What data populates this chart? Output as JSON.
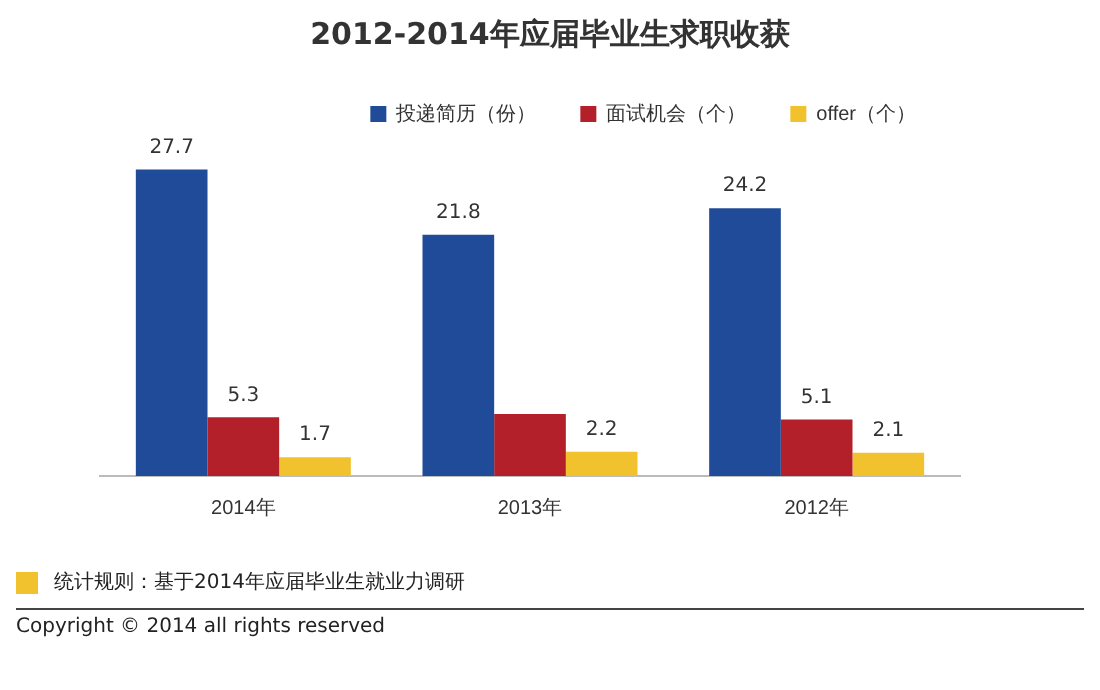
{
  "chart_data": {
    "type": "bar",
    "title": "2012-2014年应届毕业生求职收获",
    "categories": [
      "2014年",
      "2013年",
      "2012年"
    ],
    "series": [
      {
        "name": "投递简历（份）",
        "color": "#1f4b99",
        "values": [
          27.7,
          21.8,
          24.2
        ],
        "value_labels": [
          "27.7",
          "21.8",
          "24.2"
        ]
      },
      {
        "name": "面试机会（个）",
        "color": "#b3202a",
        "values": [
          5.3,
          5.6,
          5.1
        ],
        "value_labels": [
          "5.3",
          null,
          "5.1"
        ]
      },
      {
        "name": "offer（个）",
        "color": "#f2c12e",
        "values": [
          1.7,
          2.2,
          2.1
        ],
        "value_labels": [
          "1.7",
          "2.2",
          "2.1"
        ]
      }
    ],
    "legend": "top right",
    "grid": false,
    "annotations": [
      "统计规则：基于2014年应届毕业生就业力调研",
      "Copyright © 2014 all rights reserved"
    ]
  }
}
